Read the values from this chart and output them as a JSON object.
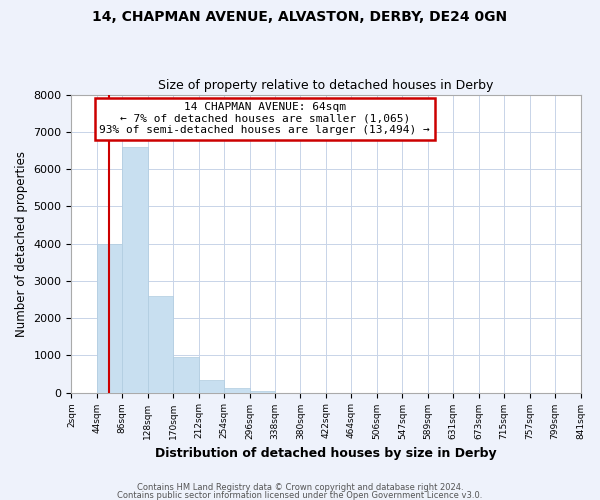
{
  "title": "14, CHAPMAN AVENUE, ALVASTON, DERBY, DE24 0GN",
  "subtitle": "Size of property relative to detached houses in Derby",
  "xlabel": "Distribution of detached houses by size in Derby",
  "ylabel": "Number of detached properties",
  "bar_values": [
    0,
    4000,
    6600,
    2600,
    950,
    330,
    120,
    50,
    0,
    0,
    0,
    0,
    0,
    0,
    0,
    0,
    0,
    0,
    0,
    0
  ],
  "bin_labels": [
    "2sqm",
    "44sqm",
    "86sqm",
    "128sqm",
    "170sqm",
    "212sqm",
    "254sqm",
    "296sqm",
    "338sqm",
    "380sqm",
    "422sqm",
    "464sqm",
    "506sqm",
    "547sqm",
    "589sqm",
    "631sqm",
    "673sqm",
    "715sqm",
    "757sqm",
    "799sqm",
    "841sqm"
  ],
  "bar_color": "#c8dff0",
  "bar_edge_color": "#b0cce0",
  "ref_line_x": 64,
  "ref_line_color": "#cc0000",
  "annotation_title": "14 CHAPMAN AVENUE: 64sqm",
  "annotation_line1": "← 7% of detached houses are smaller (1,065)",
  "annotation_line2": "93% of semi-detached houses are larger (13,494) →",
  "annotation_box_edge": "#cc0000",
  "ylim": [
    0,
    8000
  ],
  "yticks": [
    0,
    1000,
    2000,
    3000,
    4000,
    5000,
    6000,
    7000,
    8000
  ],
  "footer1": "Contains HM Land Registry data © Crown copyright and database right 2024.",
  "footer2": "Contains public sector information licensed under the Open Government Licence v3.0.",
  "bg_color": "#eef2fb",
  "plot_bg_color": "#ffffff",
  "grid_color": "#c8d4e8"
}
